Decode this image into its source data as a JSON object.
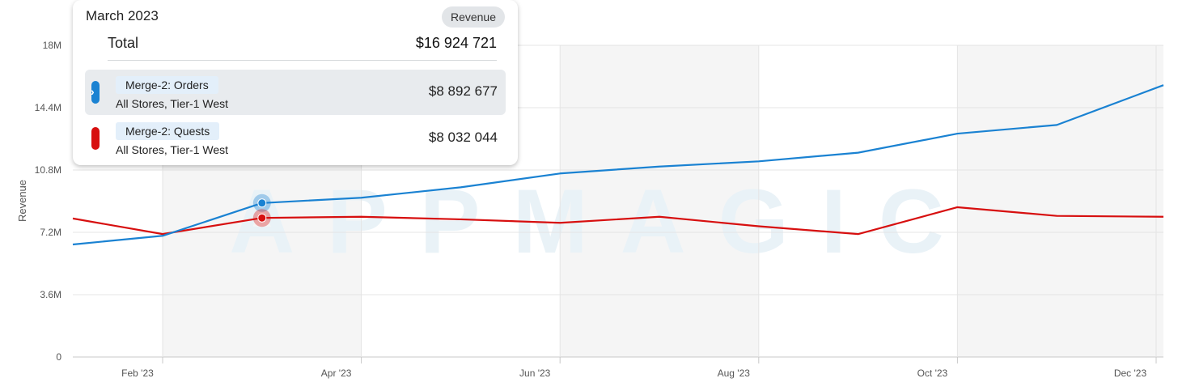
{
  "chart_data": {
    "type": "line",
    "ylabel": "Revenue",
    "ylim": [
      0,
      18000000
    ],
    "yticks": [
      "0",
      "3.6M",
      "7.2M",
      "10.8M",
      "14.4M",
      "18M"
    ],
    "ytick_values": [
      0,
      3600000,
      7200000,
      10800000,
      14400000,
      18000000
    ],
    "xticks": [
      "Feb '23",
      "Apr '23",
      "Jun '23",
      "Aug '23",
      "Oct '23",
      "Dec '23"
    ],
    "x": [
      "2023-01-01",
      "2023-02-01",
      "2023-03-01",
      "2023-04-01",
      "2023-05-01",
      "2023-06-01",
      "2023-07-01",
      "2023-08-01",
      "2023-09-01",
      "2023-10-01",
      "2023-11-01",
      "2023-12-01"
    ],
    "series": [
      {
        "name": "Merge-2: Orders",
        "color": "#1a82d2",
        "values": [
          6500000,
          7000000,
          8892677,
          9200000,
          9800000,
          10600000,
          11000000,
          11300000,
          11800000,
          12900000,
          13400000,
          15700000
        ]
      },
      {
        "name": "Merge-2: Quests",
        "color": "#d70f0f",
        "values": [
          8000000,
          7100000,
          8032044,
          8100000,
          7950000,
          7750000,
          8100000,
          7550000,
          7100000,
          8650000,
          8150000,
          8100000
        ]
      }
    ],
    "shaded_bands": [
      [
        "2023-02-01",
        "2023-04-01"
      ],
      [
        "2023-06-01",
        "2023-08-01"
      ],
      [
        "2023-10-01",
        "2023-12-01"
      ]
    ],
    "hover_index": 2,
    "watermark": "APPMAGIC",
    "grid": true
  },
  "tooltip": {
    "title": "March 2023",
    "badge": "Revenue",
    "total_label": "Total",
    "total_value": "$16 924 721",
    "rows": [
      {
        "name": "Merge-2: Orders",
        "sub": "All Stores, Tier-1 West",
        "value": "$8 892 677",
        "color": "#1a82d2",
        "active": true
      },
      {
        "name": "Merge-2: Quests",
        "sub": "All Stores, Tier-1 West",
        "value": "$8 032 044",
        "color": "#d70f0f",
        "active": false
      }
    ]
  }
}
